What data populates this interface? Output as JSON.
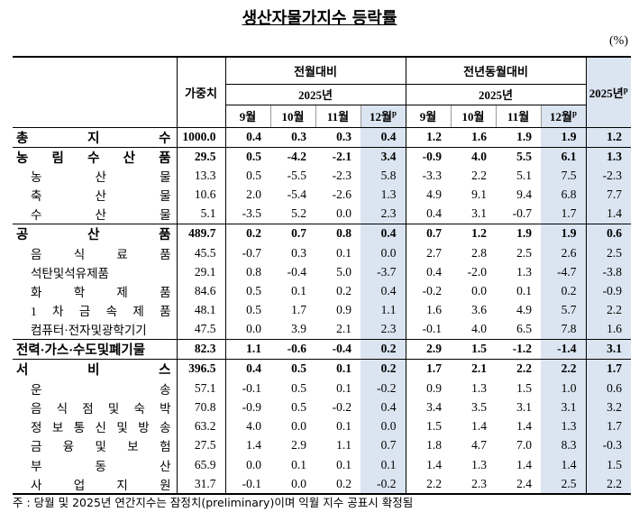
{
  "title": "생산자물가지수 등락률",
  "unit": "(%)",
  "header": {
    "weight": "가중치",
    "mom": "전월대비",
    "yoy": "전년동월대비",
    "year": "2025년",
    "months": [
      "9월",
      "10월",
      "11월",
      "12월"
    ],
    "prelim": "p",
    "annual": "2025년"
  },
  "groups": [
    {
      "label": "총 지 수",
      "weight": "1000.0",
      "values": [
        "0.4",
        "0.3",
        "0.3",
        "0.4",
        "1.2",
        "1.6",
        "1.9",
        "1.9",
        "1.2"
      ]
    },
    {
      "label": "농 림 수 산 품",
      "weight": "29.5",
      "values": [
        "0.5",
        "-4.2",
        "-2.1",
        "3.4",
        "-0.9",
        "4.0",
        "5.5",
        "6.1",
        "1.3"
      ],
      "items": [
        {
          "label": "농 산 물",
          "weight": "13.3",
          "values": [
            "0.5",
            "-5.5",
            "-2.3",
            "5.8",
            "-3.3",
            "2.2",
            "5.1",
            "7.5",
            "-2.3"
          ]
        },
        {
          "label": "축 산 물",
          "weight": "10.6",
          "values": [
            "2.0",
            "-5.4",
            "-2.6",
            "1.3",
            "4.9",
            "9.1",
            "9.4",
            "6.8",
            "7.7"
          ]
        },
        {
          "label": "수 산 물",
          "weight": "5.1",
          "values": [
            "-3.5",
            "5.2",
            "0.0",
            "2.3",
            "0.4",
            "3.1",
            "-0.7",
            "1.7",
            "1.4"
          ]
        }
      ]
    },
    {
      "label": "공 산 품",
      "weight": "489.7",
      "values": [
        "0.2",
        "0.7",
        "0.8",
        "0.4",
        "0.7",
        "1.2",
        "1.9",
        "1.9",
        "0.6"
      ],
      "items": [
        {
          "label": "음 식 료 품",
          "weight": "45.5",
          "values": [
            "-0.7",
            "0.3",
            "0.1",
            "0.0",
            "2.7",
            "2.8",
            "2.5",
            "2.6",
            "2.5"
          ]
        },
        {
          "label": "석탄및석유제품",
          "weight": "29.1",
          "values": [
            "0.8",
            "-0.4",
            "5.0",
            "-3.7",
            "0.4",
            "-2.0",
            "1.3",
            "-4.7",
            "-3.8"
          ]
        },
        {
          "label": "화 학 제 품",
          "weight": "84.6",
          "values": [
            "0.5",
            "0.1",
            "0.2",
            "0.4",
            "-0.2",
            "0.0",
            "0.1",
            "0.2",
            "-0.9"
          ]
        },
        {
          "label": "1 차 금 속 제 품",
          "weight": "48.1",
          "values": [
            "0.5",
            "1.7",
            "0.9",
            "1.1",
            "1.6",
            "3.6",
            "4.9",
            "5.7",
            "2.2"
          ]
        },
        {
          "label": "컴퓨터·전자및광학기기",
          "weight": "47.5",
          "values": [
            "0.0",
            "3.9",
            "2.1",
            "2.3",
            "-0.1",
            "4.0",
            "6.5",
            "7.8",
            "1.6"
          ]
        }
      ]
    },
    {
      "label": "전력·가스·수도및폐기물",
      "weight": "82.3",
      "values": [
        "1.1",
        "-0.6",
        "-0.4",
        "0.2",
        "2.9",
        "1.5",
        "-1.2",
        "-1.4",
        "3.1"
      ]
    },
    {
      "label": "서 비 스",
      "weight": "396.5",
      "values": [
        "0.4",
        "0.5",
        "0.1",
        "0.2",
        "1.7",
        "2.1",
        "2.2",
        "2.2",
        "1.7"
      ],
      "items": [
        {
          "label": "운 송",
          "weight": "57.1",
          "values": [
            "-0.1",
            "0.5",
            "0.1",
            "-0.2",
            "0.9",
            "1.3",
            "1.5",
            "1.0",
            "0.6"
          ]
        },
        {
          "label": "음 식 점 및 숙 박",
          "weight": "70.8",
          "values": [
            "-0.9",
            "0.5",
            "-0.2",
            "0.4",
            "3.4",
            "3.5",
            "3.1",
            "3.1",
            "3.2"
          ]
        },
        {
          "label": "정 보 통 신 및 방 송",
          "weight": "63.2",
          "values": [
            "4.0",
            "0.0",
            "0.1",
            "0.0",
            "1.5",
            "1.4",
            "1.4",
            "1.3",
            "1.7"
          ]
        },
        {
          "label": "금 융 및 보 험",
          "weight": "27.5",
          "values": [
            "1.4",
            "2.9",
            "1.1",
            "0.7",
            "1.8",
            "4.7",
            "7.0",
            "8.3",
            "-0.3"
          ]
        },
        {
          "label": "부 동 산",
          "weight": "65.9",
          "values": [
            "0.0",
            "0.1",
            "0.1",
            "0.1",
            "1.4",
            "1.3",
            "1.4",
            "1.4",
            "1.5"
          ]
        },
        {
          "label": "사 업 지 원",
          "weight": "31.7",
          "values": [
            "-0.1",
            "0.0",
            "0.2",
            "-0.2",
            "2.2",
            "2.3",
            "2.4",
            "2.5",
            "2.2"
          ]
        }
      ]
    }
  ],
  "footnote": "주 : 당월 및 2025년 연간지수는 잠정치(preliminary)이며 익월 지수 공표시 확정됨"
}
